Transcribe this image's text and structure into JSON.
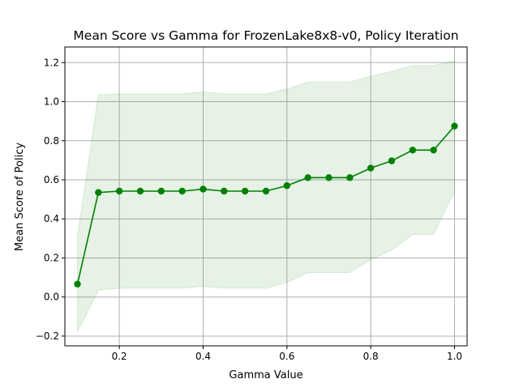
{
  "chart_data": {
    "type": "line",
    "title": "Mean Score vs Gamma for FrozenLake8x8-v0, Policy Iteration",
    "xlabel": "Gamma Value",
    "ylabel": "Mean Score of Policy",
    "xlim": [
      0.07,
      1.03
    ],
    "ylim": [
      -0.25,
      1.28
    ],
    "xticks": [
      0.2,
      0.4,
      0.6,
      0.8,
      1.0
    ],
    "xtick_labels": [
      "0.2",
      "0.4",
      "0.6",
      "0.8",
      "1.0"
    ],
    "yticks": [
      -0.2,
      0.0,
      0.2,
      0.4,
      0.6,
      0.8,
      1.0,
      1.2
    ],
    "ytick_labels": [
      "−0.2",
      "0.0",
      "0.2",
      "0.4",
      "0.6",
      "0.8",
      "1.0",
      "1.2"
    ],
    "grid": true,
    "x": [
      0.1,
      0.15,
      0.2,
      0.25,
      0.3,
      0.35,
      0.4,
      0.45,
      0.5,
      0.55,
      0.6,
      0.65,
      0.7,
      0.75,
      0.8,
      0.85,
      0.9,
      0.95,
      1.0
    ],
    "series": [
      {
        "values": [
          0.066,
          0.535,
          0.542,
          0.542,
          0.542,
          0.542,
          0.552,
          0.542,
          0.542,
          0.542,
          0.57,
          0.611,
          0.611,
          0.611,
          0.66,
          0.697,
          0.752,
          0.752,
          0.875
        ],
        "upper": [
          0.31,
          1.035,
          1.04,
          1.04,
          1.04,
          1.04,
          1.05,
          1.04,
          1.04,
          1.04,
          1.065,
          1.1,
          1.1,
          1.1,
          1.13,
          1.155,
          1.185,
          1.185,
          1.21
        ],
        "lower": [
          -0.18,
          0.035,
          0.045,
          0.045,
          0.045,
          0.045,
          0.055,
          0.045,
          0.045,
          0.045,
          0.075,
          0.125,
          0.125,
          0.125,
          0.19,
          0.24,
          0.32,
          0.32,
          0.54
        ],
        "color": "#008000",
        "band_color": "#008000"
      }
    ]
  }
}
